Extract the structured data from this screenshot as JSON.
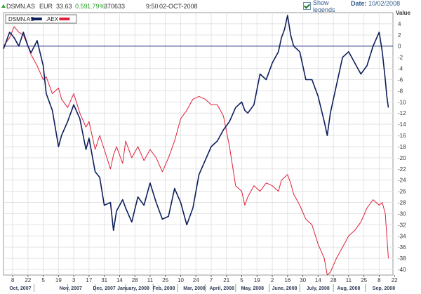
{
  "header": {
    "symbol": "DSMN.AS",
    "currency": "EUR",
    "price": "33.63",
    "change": "0.59",
    "change_pct": "1.79%",
    "volume": "370633",
    "time": "9:50",
    "date": "02-OCT-2008",
    "show_legends_label": "Show legends",
    "show_legends_checked": true,
    "date_label": "Date:",
    "date_value": "10/02/2008"
  },
  "chart_data": {
    "type": "line",
    "y_axis_title": "Value",
    "ylim": [
      -41,
      6
    ],
    "y_ticks": [
      4,
      2,
      0,
      -2,
      -4,
      -6,
      -8,
      -10,
      -12,
      -14,
      -16,
      -18,
      -20,
      -22,
      -24,
      -26,
      -28,
      -30,
      -32,
      -34,
      -36,
      -38,
      -40
    ],
    "x_range": [
      0,
      255
    ],
    "day_ticks": [
      {
        "x": 6,
        "label": "8"
      },
      {
        "x": 16,
        "label": "22"
      },
      {
        "x": 26,
        "label": "5"
      },
      {
        "x": 36,
        "label": "19"
      },
      {
        "x": 46,
        "label": "3"
      },
      {
        "x": 56,
        "label": "17"
      },
      {
        "x": 66,
        "label": "31"
      },
      {
        "x": 76,
        "label": "14"
      },
      {
        "x": 86,
        "label": "28"
      },
      {
        "x": 96,
        "label": "11"
      },
      {
        "x": 106,
        "label": "25"
      },
      {
        "x": 116,
        "label": "10"
      },
      {
        "x": 126,
        "label": "24"
      },
      {
        "x": 136,
        "label": "7"
      },
      {
        "x": 146,
        "label": "21"
      },
      {
        "x": 156,
        "label": "5"
      },
      {
        "x": 166,
        "label": "19"
      },
      {
        "x": 176,
        "label": "2"
      },
      {
        "x": 186,
        "label": "16"
      },
      {
        "x": 196,
        "label": "30"
      },
      {
        "x": 206,
        "label": "14"
      },
      {
        "x": 216,
        "label": "28"
      },
      {
        "x": 226,
        "label": "11"
      },
      {
        "x": 236,
        "label": "25"
      },
      {
        "x": 246,
        "label": "8"
      },
      {
        "x": 256,
        "label": "22"
      }
    ],
    "month_labels": [
      {
        "x": 11,
        "label": "Oct, 2007"
      },
      {
        "x": 44,
        "label": "Nov, 2007"
      },
      {
        "x": 66,
        "label": "Dec, 2007"
      },
      {
        "x": 85,
        "label": "January, 2008"
      },
      {
        "x": 105,
        "label": "Feb, 2008"
      },
      {
        "x": 125,
        "label": "Mar, 2008"
      },
      {
        "x": 143,
        "label": "April, 2008"
      },
      {
        "x": 163,
        "label": "May, 2008"
      },
      {
        "x": 184,
        "label": "June, 2008"
      },
      {
        "x": 206,
        "label": "July, 2008"
      },
      {
        "x": 226,
        "label": "Aug, 2008"
      },
      {
        "x": 249,
        "label": "Sep, 2008"
      }
    ],
    "month_separators": [
      20,
      42,
      60,
      80,
      98,
      114,
      132,
      152,
      174,
      194,
      216,
      237
    ],
    "series": [
      {
        "name": "DSMN.AS",
        "color": "#0d1f5c",
        "x": [
          0,
          4,
          7,
          10,
          13,
          16,
          18,
          22,
          26,
          28,
          32,
          36,
          38,
          42,
          46,
          50,
          54,
          56,
          60,
          63,
          66,
          70,
          72,
          74,
          78,
          80,
          84,
          88,
          92,
          96,
          100,
          104,
          108,
          112,
          116,
          120,
          124,
          128,
          132,
          136,
          140,
          144,
          148,
          152,
          156,
          158,
          160,
          164,
          168,
          172,
          176,
          180,
          182,
          184,
          186,
          188,
          190,
          194,
          198,
          202,
          206,
          210,
          212,
          214,
          218,
          222,
          226,
          230,
          234,
          238,
          242,
          246,
          248,
          250,
          251,
          252
        ],
        "y": [
          -0.5,
          2.5,
          1.5,
          0,
          2.5,
          0,
          -1.2,
          1,
          -3.5,
          -8.5,
          -11.5,
          -18,
          -16,
          -13.5,
          -10.5,
          -13,
          -18.5,
          -16.5,
          -22.5,
          -23.5,
          -28.5,
          -28,
          -33,
          -29.5,
          -27.5,
          -29,
          -31.5,
          -27,
          -28.5,
          -24.5,
          -28,
          -31,
          -30.5,
          -25.5,
          -28,
          -32,
          -29,
          -23,
          -20.5,
          -18,
          -17,
          -15,
          -13.5,
          -11,
          -10,
          -11.5,
          -12,
          -10.5,
          -5,
          -6,
          -3,
          -1,
          1.5,
          3,
          5.5,
          2,
          0,
          -1,
          -6,
          -6,
          -9,
          -13.5,
          -16,
          -12,
          -7,
          -2,
          -1,
          -3,
          -5,
          -3.5,
          0,
          2.5,
          -1,
          -6,
          -9,
          -11
        ]
      },
      {
        "name": ".AEX",
        "color": "#e0203a",
        "x": [
          0,
          4,
          7,
          10,
          13,
          16,
          18,
          22,
          26,
          28,
          32,
          36,
          38,
          42,
          46,
          50,
          54,
          56,
          60,
          63,
          66,
          70,
          72,
          74,
          78,
          80,
          84,
          88,
          92,
          96,
          100,
          104,
          108,
          112,
          116,
          120,
          124,
          128,
          132,
          136,
          140,
          144,
          148,
          152,
          156,
          158,
          160,
          164,
          168,
          172,
          176,
          180,
          182,
          184,
          186,
          188,
          190,
          194,
          198,
          202,
          206,
          210,
          212,
          214,
          218,
          222,
          226,
          230,
          234,
          238,
          242,
          246,
          248,
          250,
          251,
          252
        ],
        "y": [
          0,
          1.5,
          3.5,
          2.5,
          2,
          0,
          -1.5,
          -3.5,
          -6,
          -5.5,
          -8.5,
          -7.5,
          -9.5,
          -11,
          -8.5,
          -12,
          -14.5,
          -13.5,
          -18.5,
          -16,
          -18.5,
          -22,
          -19.5,
          -18,
          -21,
          -17,
          -20,
          -18,
          -20.5,
          -18.5,
          -20,
          -22.5,
          -20,
          -17,
          -13,
          -11.5,
          -9.5,
          -9,
          -9.5,
          -10.5,
          -10.5,
          -12.5,
          -18,
          -25,
          -26,
          -28.5,
          -27,
          -25,
          -26,
          -24.5,
          -25,
          -26,
          -24,
          -23.5,
          -23,
          -24.5,
          -26.5,
          -28.5,
          -31,
          -32,
          -35.5,
          -38,
          -41,
          -40.5,
          -38,
          -36,
          -34,
          -33,
          -31.5,
          -29,
          -27.5,
          -28.5,
          -28,
          -30,
          -34,
          -38
        ]
      }
    ],
    "legend_position": "top-left",
    "grid": true
  }
}
